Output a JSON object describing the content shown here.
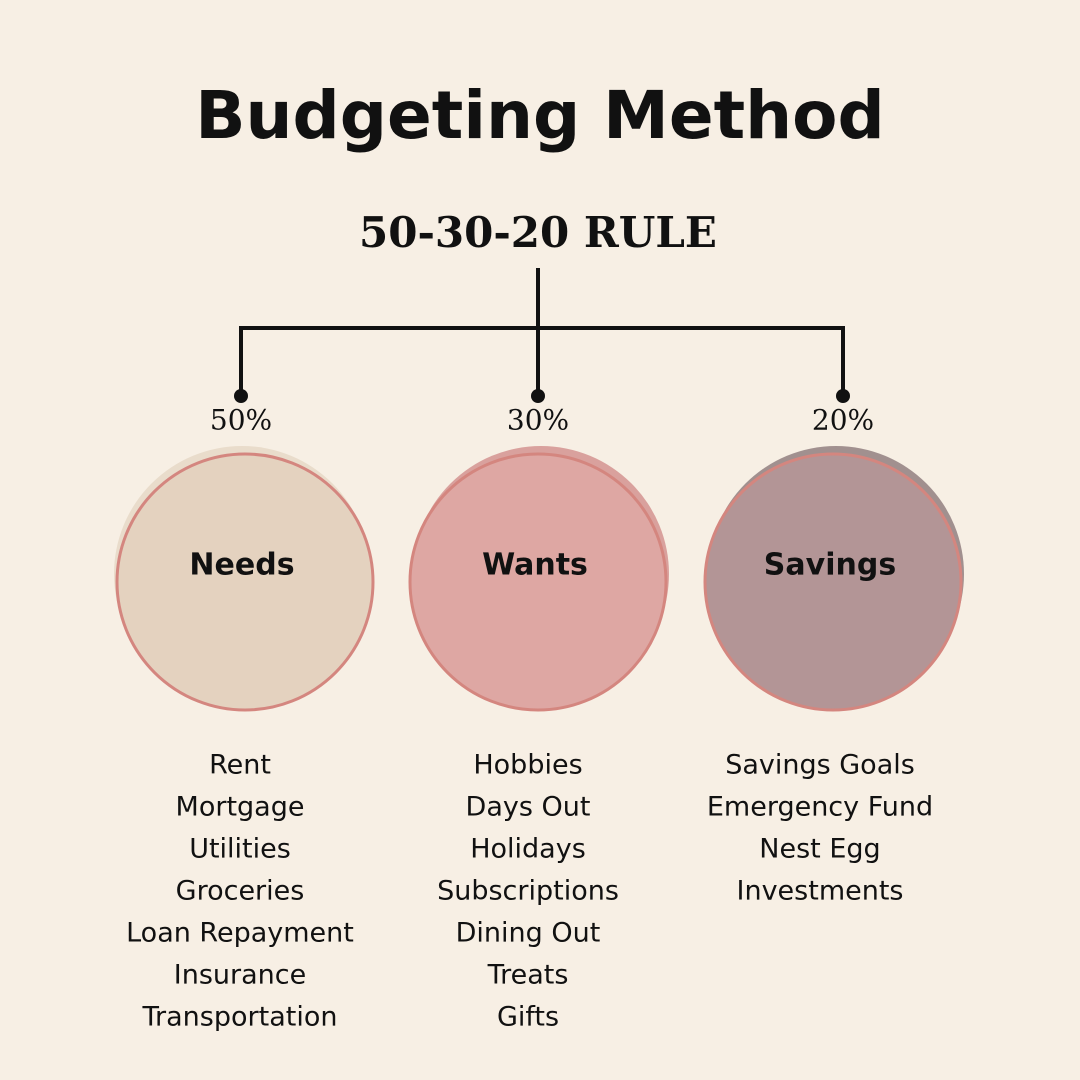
{
  "header": {
    "title": "Budgeting Method",
    "subtitle": "50-30-20 RULE"
  },
  "columns": [
    {
      "percent": "50%",
      "label": "Needs",
      "items": [
        "Rent",
        "Mortgage",
        "Utilities",
        "Groceries",
        "Loan Repayment",
        "Insurance",
        "Transportation"
      ]
    },
    {
      "percent": "30%",
      "label": "Wants",
      "items": [
        "Hobbies",
        "Days Out",
        "Holidays",
        "Subscriptions",
        "Dining Out",
        "Treats",
        "Gifts"
      ]
    },
    {
      "percent": "20%",
      "label": "Savings",
      "items": [
        "Savings Goals",
        "Emergency Fund",
        "Nest Egg",
        "Investments"
      ]
    }
  ]
}
